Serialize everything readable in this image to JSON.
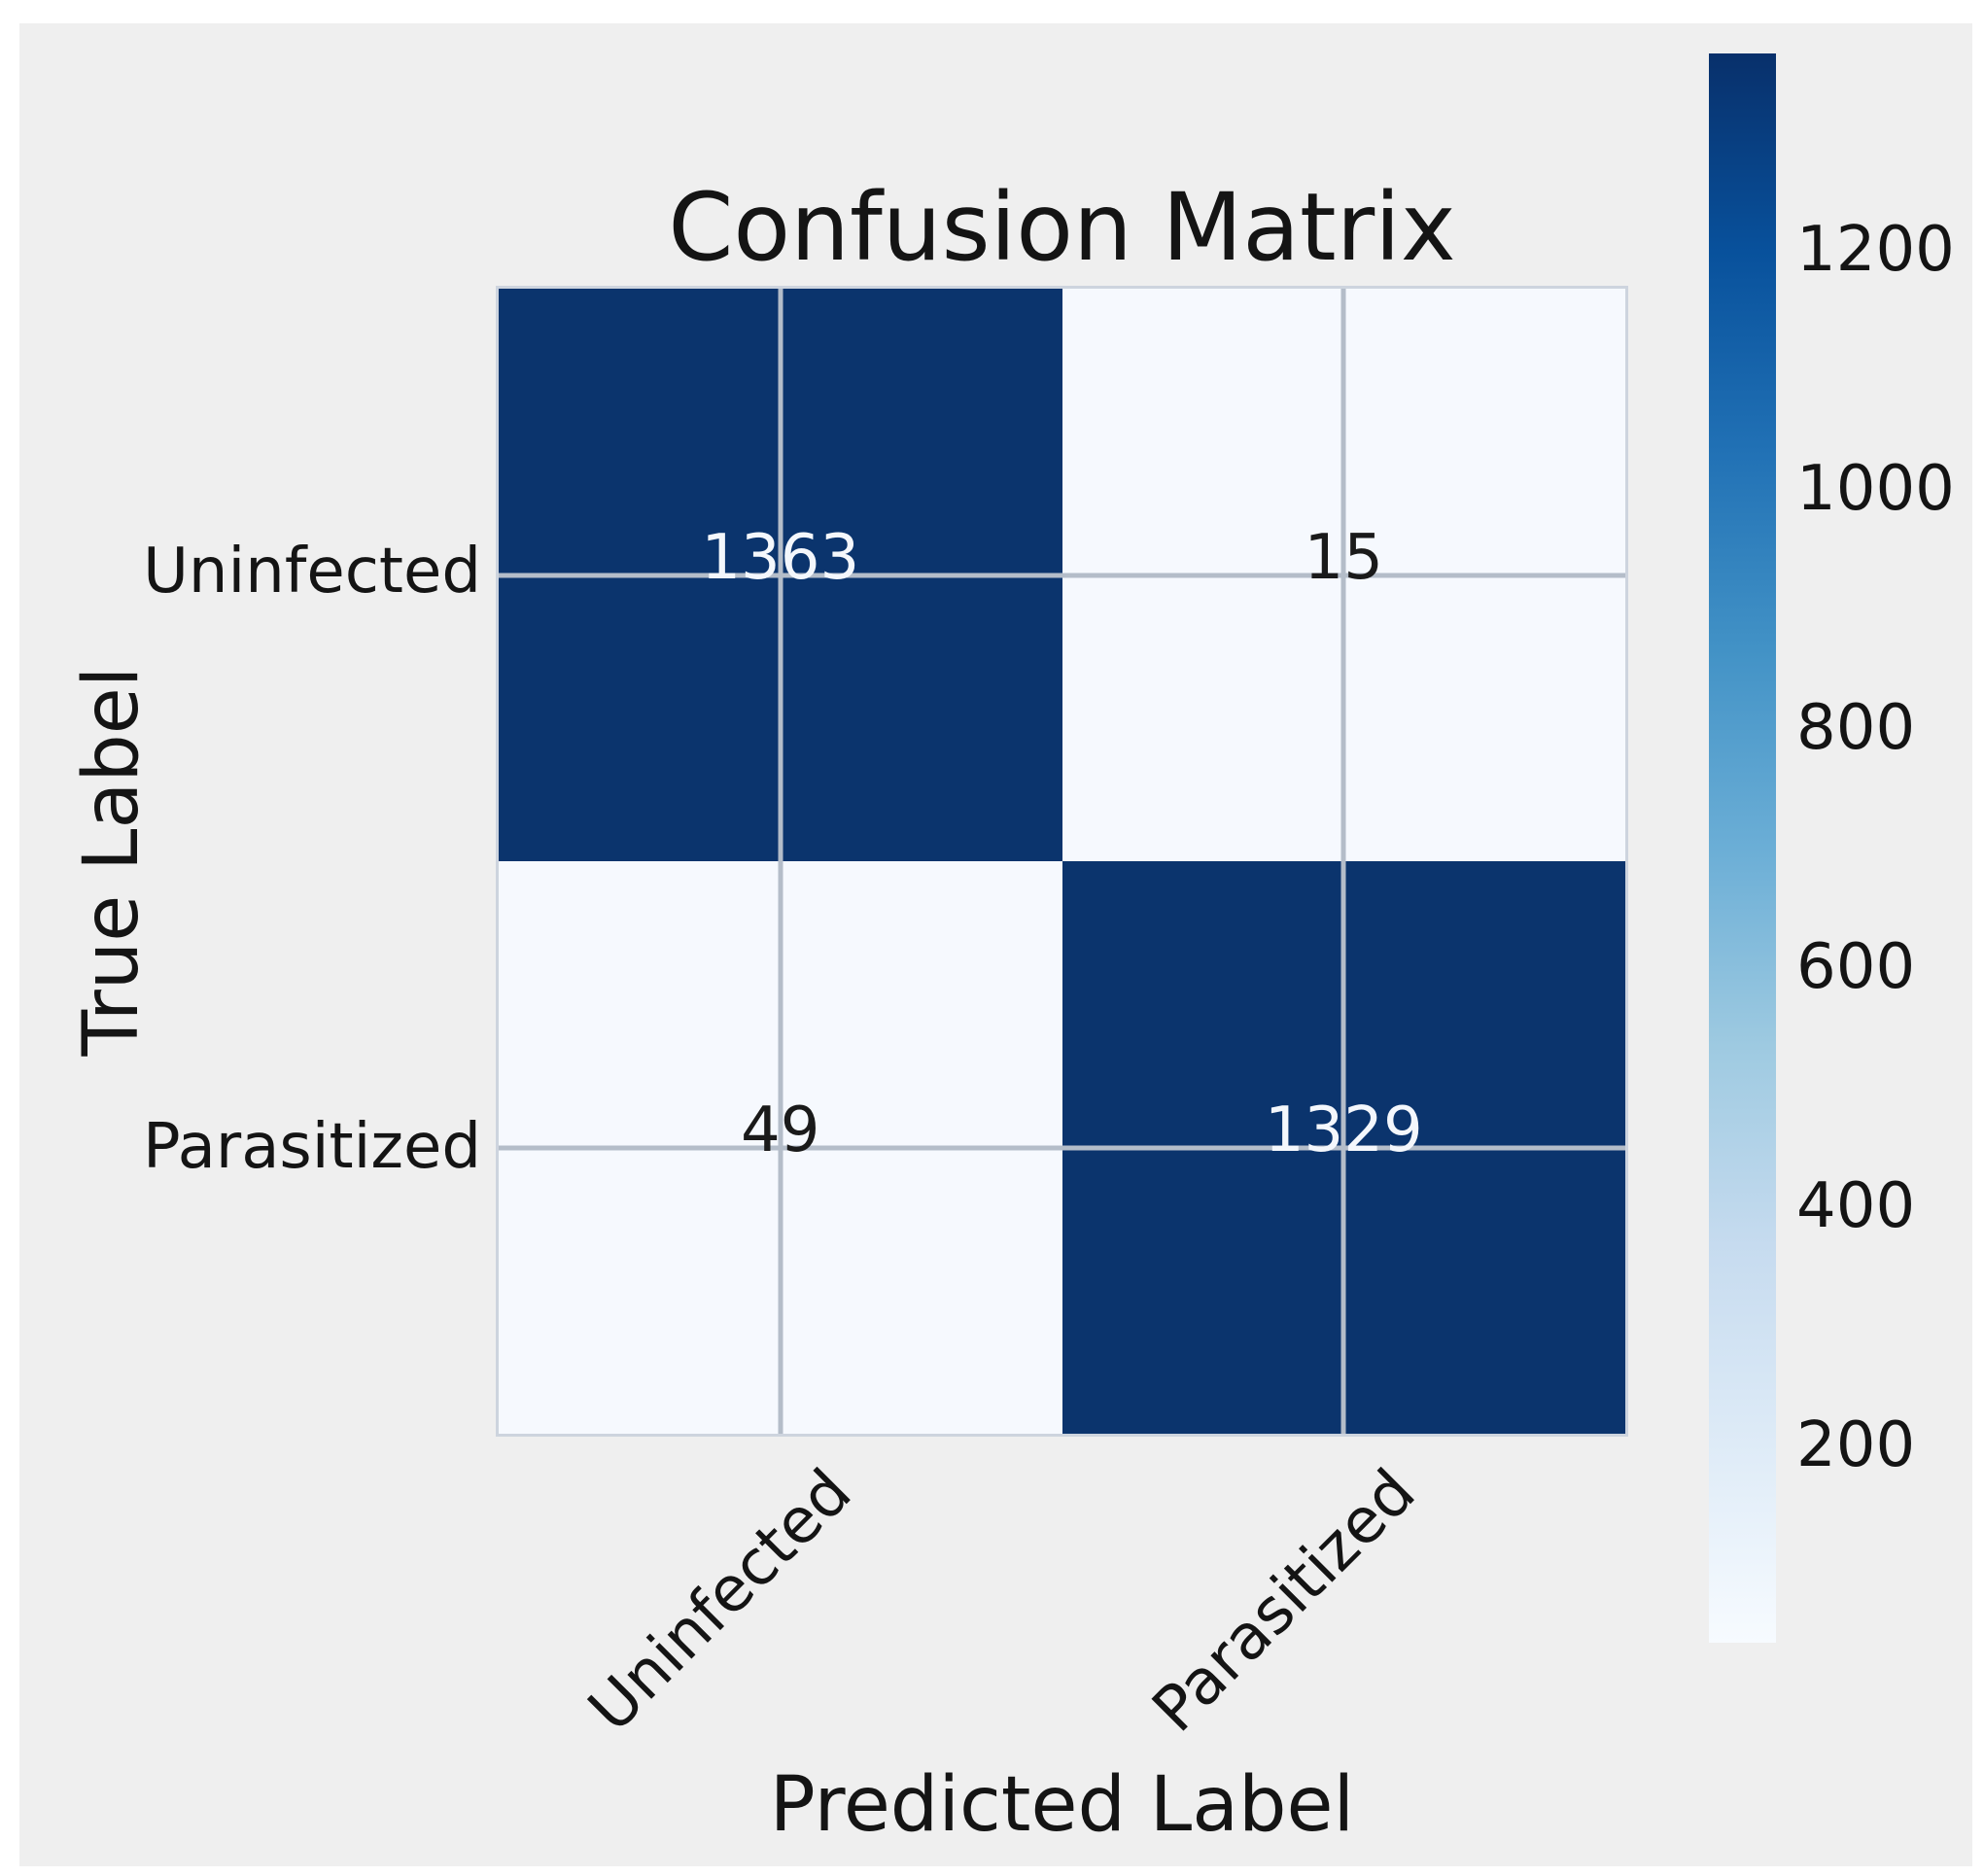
{
  "figure": {
    "background_color": "#efefef",
    "frame_color": "#ffffff"
  },
  "chart_data": {
    "type": "heatmap",
    "title": "Confusion Matrix",
    "xlabel": "Predicted Label",
    "ylabel": "True Label",
    "x_categories": [
      "Uninfected",
      "Parasitized"
    ],
    "y_categories": [
      "Uninfected",
      "Parasitized"
    ],
    "matrix": [
      [
        1363,
        15
      ],
      [
        49,
        1329
      ]
    ],
    "grid": true,
    "colors": {
      "high_cell": "#0b346d",
      "low_cell": "#f6f9fe",
      "gridline": "#b4bdc9",
      "value_text_on_dark": "#f4f7fc",
      "value_text_on_light": "#1a1a1a"
    },
    "colorbar": {
      "position": "right",
      "colormap": "Blues",
      "min_color": "#f7fbff",
      "max_color": "#08306b",
      "ticks": [
        "1200",
        "1000",
        "800",
        "600",
        "400",
        "200"
      ]
    }
  }
}
